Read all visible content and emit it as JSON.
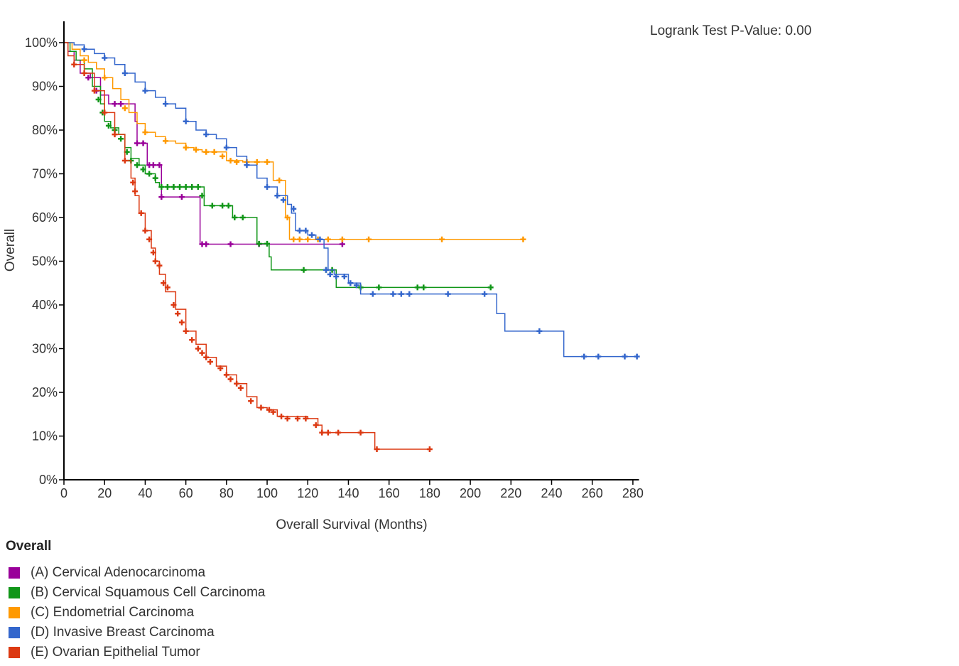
{
  "pvalue_text": "Logrank Test P-Value: 0.00",
  "chart_data": {
    "type": "line",
    "subtype": "kaplan-meier",
    "xlabel": "Overall Survival (Months)",
    "ylabel": "Overall",
    "xlim": [
      0,
      283
    ],
    "ylim": [
      0,
      100
    ],
    "xticks": [
      0,
      20,
      40,
      60,
      80,
      100,
      120,
      140,
      160,
      180,
      200,
      220,
      240,
      260,
      280
    ],
    "yticks": [
      0,
      10,
      20,
      30,
      40,
      50,
      60,
      70,
      80,
      90,
      100
    ],
    "ytick_suffix": "%",
    "legend_title": "Overall",
    "legend_position": "bottom-left",
    "series": [
      {
        "name": "(A) Cervical Adenocarcinoma",
        "color": "#990099",
        "points": [
          [
            0,
            100
          ],
          [
            2,
            98
          ],
          [
            5,
            96
          ],
          [
            8,
            93
          ],
          [
            13,
            92
          ],
          [
            18,
            88
          ],
          [
            22,
            86
          ],
          [
            33,
            86
          ],
          [
            35,
            82
          ],
          [
            36,
            77
          ],
          [
            40,
            77
          ],
          [
            41,
            72
          ],
          [
            47,
            72
          ],
          [
            48,
            64.7
          ],
          [
            66,
            64.7
          ],
          [
            67,
            53.9
          ],
          [
            137,
            53.9
          ]
        ],
        "censored": [
          [
            12,
            92
          ],
          [
            16,
            89
          ],
          [
            25,
            86
          ],
          [
            28,
            86
          ],
          [
            36,
            77
          ],
          [
            39,
            77
          ],
          [
            42,
            72
          ],
          [
            44,
            72
          ],
          [
            47,
            72
          ],
          [
            48,
            64.7
          ],
          [
            58,
            64.7
          ],
          [
            68,
            53.9
          ],
          [
            70,
            53.9
          ],
          [
            82,
            53.9
          ],
          [
            96,
            53.9
          ],
          [
            137,
            53.9
          ]
        ]
      },
      {
        "name": "(B) Cervical Squamous Cell Carcinoma",
        "color": "#109618",
        "points": [
          [
            0,
            100
          ],
          [
            3,
            98
          ],
          [
            6,
            96
          ],
          [
            10,
            94
          ],
          [
            14,
            90
          ],
          [
            18,
            86
          ],
          [
            20,
            82
          ],
          [
            23,
            80.5
          ],
          [
            27,
            79
          ],
          [
            30,
            76
          ],
          [
            33,
            73.5
          ],
          [
            37,
            72
          ],
          [
            40,
            70
          ],
          [
            45,
            68
          ],
          [
            47,
            67
          ],
          [
            67,
            67
          ],
          [
            69,
            62.7
          ],
          [
            82,
            62.7
          ],
          [
            83,
            60
          ],
          [
            94,
            60
          ],
          [
            95,
            54
          ],
          [
            100,
            54
          ],
          [
            101,
            51
          ],
          [
            102,
            48
          ],
          [
            127,
            48
          ],
          [
            128,
            48
          ],
          [
            134,
            44
          ],
          [
            211,
            44
          ]
        ],
        "censored": [
          [
            17,
            87
          ],
          [
            19,
            84
          ],
          [
            22,
            81
          ],
          [
            25,
            80
          ],
          [
            28,
            78
          ],
          [
            31,
            75
          ],
          [
            33,
            73
          ],
          [
            36,
            72
          ],
          [
            39,
            71
          ],
          [
            42,
            70
          ],
          [
            45,
            69
          ],
          [
            48,
            67
          ],
          [
            51,
            67
          ],
          [
            54,
            67
          ],
          [
            57,
            67
          ],
          [
            60,
            67
          ],
          [
            63,
            67
          ],
          [
            66,
            67
          ],
          [
            68,
            65
          ],
          [
            73,
            62.7
          ],
          [
            78,
            62.7
          ],
          [
            81,
            62.7
          ],
          [
            84,
            60
          ],
          [
            88,
            60
          ],
          [
            96,
            54
          ],
          [
            100,
            54
          ],
          [
            118,
            48
          ],
          [
            129,
            48
          ],
          [
            132,
            48
          ],
          [
            146,
            44
          ],
          [
            155,
            44
          ],
          [
            174,
            44
          ],
          [
            177,
            44
          ],
          [
            210,
            44
          ]
        ]
      },
      {
        "name": "(C) Endometrial Carcinoma",
        "color": "#ff9900",
        "points": [
          [
            0,
            100
          ],
          [
            4,
            98.5
          ],
          [
            8,
            97
          ],
          [
            12,
            95.5
          ],
          [
            16,
            94
          ],
          [
            20,
            92
          ],
          [
            24,
            89.5
          ],
          [
            28,
            87
          ],
          [
            32,
            84
          ],
          [
            36,
            81.5
          ],
          [
            40,
            79.5
          ],
          [
            45,
            78.5
          ],
          [
            50,
            77.5
          ],
          [
            55,
            77
          ],
          [
            60,
            76
          ],
          [
            64,
            75.5
          ],
          [
            68,
            75
          ],
          [
            75,
            75
          ],
          [
            80,
            73
          ],
          [
            88,
            72.7
          ],
          [
            102,
            72.7
          ],
          [
            103,
            68.5
          ],
          [
            108,
            68.5
          ],
          [
            109,
            60
          ],
          [
            111,
            55
          ],
          [
            226,
            55
          ]
        ],
        "censored": [
          [
            10,
            96
          ],
          [
            20,
            92
          ],
          [
            30,
            85
          ],
          [
            40,
            79.5
          ],
          [
            50,
            77.5
          ],
          [
            60,
            76
          ],
          [
            65,
            75.5
          ],
          [
            70,
            75
          ],
          [
            74,
            75
          ],
          [
            78,
            74
          ],
          [
            82,
            73
          ],
          [
            85,
            72.7
          ],
          [
            90,
            72.7
          ],
          [
            95,
            72.7
          ],
          [
            100,
            72.7
          ],
          [
            106,
            68.5
          ],
          [
            110,
            60
          ],
          [
            113,
            55
          ],
          [
            116,
            55
          ],
          [
            120,
            55
          ],
          [
            125,
            55
          ],
          [
            130,
            55
          ],
          [
            137,
            55
          ],
          [
            150,
            55
          ],
          [
            186,
            55
          ],
          [
            226,
            55
          ]
        ]
      },
      {
        "name": "(D) Invasive Breast Carcinoma",
        "color": "#3366cc",
        "points": [
          [
            0,
            100
          ],
          [
            5,
            99.5
          ],
          [
            10,
            98.5
          ],
          [
            15,
            97.5
          ],
          [
            20,
            96.5
          ],
          [
            25,
            95
          ],
          [
            30,
            93
          ],
          [
            35,
            91
          ],
          [
            40,
            89
          ],
          [
            45,
            87.5
          ],
          [
            50,
            86
          ],
          [
            55,
            85
          ],
          [
            60,
            82
          ],
          [
            65,
            80
          ],
          [
            70,
            79
          ],
          [
            75,
            78
          ],
          [
            80,
            76
          ],
          [
            85,
            74
          ],
          [
            90,
            72
          ],
          [
            95,
            69
          ],
          [
            100,
            67
          ],
          [
            105,
            65
          ],
          [
            110,
            63
          ],
          [
            112,
            61
          ],
          [
            114,
            57
          ],
          [
            120,
            56
          ],
          [
            124,
            55
          ],
          [
            128,
            53
          ],
          [
            130,
            48
          ],
          [
            133,
            47
          ],
          [
            140,
            45
          ],
          [
            146,
            42.5
          ],
          [
            212,
            42.5
          ],
          [
            213,
            38
          ],
          [
            217,
            34
          ],
          [
            245,
            34
          ],
          [
            246,
            28.2
          ],
          [
            283,
            28.2
          ]
        ],
        "censored": [
          [
            10,
            98.5
          ],
          [
            20,
            96.5
          ],
          [
            30,
            93
          ],
          [
            40,
            89
          ],
          [
            50,
            86
          ],
          [
            60,
            82
          ],
          [
            70,
            79
          ],
          [
            80,
            76
          ],
          [
            90,
            72
          ],
          [
            100,
            67
          ],
          [
            105,
            65
          ],
          [
            108,
            64
          ],
          [
            113,
            62
          ],
          [
            116,
            57
          ],
          [
            119,
            57
          ],
          [
            122,
            56
          ],
          [
            126,
            55
          ],
          [
            129,
            48
          ],
          [
            131,
            47
          ],
          [
            134,
            46.5
          ],
          [
            138,
            46.5
          ],
          [
            141,
            45
          ],
          [
            144,
            44.5
          ],
          [
            152,
            42.5
          ],
          [
            162,
            42.5
          ],
          [
            166,
            42.5
          ],
          [
            170,
            42.5
          ],
          [
            189,
            42.5
          ],
          [
            207,
            42.5
          ],
          [
            234,
            34
          ],
          [
            256,
            28.2
          ],
          [
            263,
            28.2
          ],
          [
            276,
            28.2
          ],
          [
            282,
            28.2
          ]
        ]
      },
      {
        "name": "(E) Ovarian Epithelial Tumor",
        "color": "#dc3912",
        "points": [
          [
            0,
            100
          ],
          [
            2,
            97
          ],
          [
            5,
            95
          ],
          [
            10,
            93
          ],
          [
            15,
            89
          ],
          [
            20,
            84
          ],
          [
            25,
            79
          ],
          [
            30,
            73
          ],
          [
            33,
            69
          ],
          [
            35,
            65
          ],
          [
            37,
            61
          ],
          [
            40,
            57
          ],
          [
            43,
            53
          ],
          [
            45,
            50
          ],
          [
            47,
            47
          ],
          [
            50,
            43
          ],
          [
            55,
            39
          ],
          [
            60,
            34
          ],
          [
            65,
            31
          ],
          [
            70,
            28
          ],
          [
            75,
            26
          ],
          [
            80,
            24
          ],
          [
            85,
            22
          ],
          [
            90,
            19
          ],
          [
            95,
            16.5
          ],
          [
            100,
            16
          ],
          [
            105,
            14.5
          ],
          [
            120,
            14
          ],
          [
            125,
            12.5
          ],
          [
            127,
            10.8
          ],
          [
            152,
            10.8
          ],
          [
            153,
            7
          ],
          [
            180,
            7
          ]
        ],
        "censored": [
          [
            5,
            95
          ],
          [
            10,
            93
          ],
          [
            15,
            89
          ],
          [
            20,
            84
          ],
          [
            25,
            79
          ],
          [
            30,
            73
          ],
          [
            34,
            68
          ],
          [
            35,
            66
          ],
          [
            38,
            61
          ],
          [
            40,
            57
          ],
          [
            42,
            55
          ],
          [
            44,
            52
          ],
          [
            45,
            50
          ],
          [
            47,
            49
          ],
          [
            49,
            45
          ],
          [
            51,
            44
          ],
          [
            54,
            40
          ],
          [
            56,
            38
          ],
          [
            58,
            36
          ],
          [
            60,
            34
          ],
          [
            63,
            32
          ],
          [
            66,
            30
          ],
          [
            68,
            29
          ],
          [
            70,
            28
          ],
          [
            72,
            27
          ],
          [
            77,
            25.5
          ],
          [
            80,
            24
          ],
          [
            82,
            23
          ],
          [
            85,
            22
          ],
          [
            87,
            21
          ],
          [
            92,
            18
          ],
          [
            97,
            16.5
          ],
          [
            101,
            16
          ],
          [
            103,
            15.5
          ],
          [
            107,
            14.5
          ],
          [
            110,
            14
          ],
          [
            115,
            14
          ],
          [
            119,
            14
          ],
          [
            124,
            12.5
          ],
          [
            127,
            10.8
          ],
          [
            130,
            10.8
          ],
          [
            135,
            10.8
          ],
          [
            146,
            10.8
          ],
          [
            154,
            7
          ],
          [
            180,
            7
          ]
        ]
      }
    ]
  }
}
